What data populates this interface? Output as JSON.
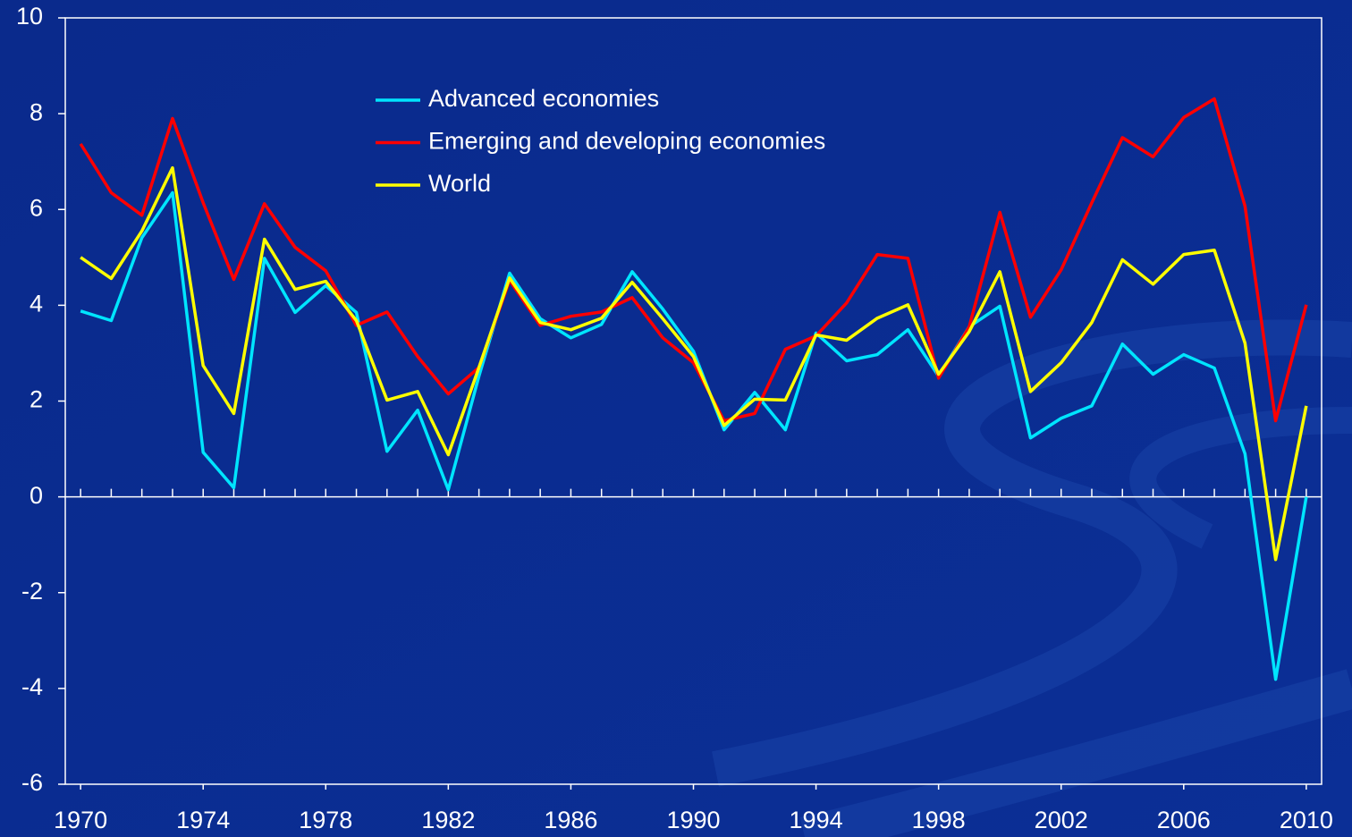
{
  "chart_data": {
    "type": "line",
    "x": [
      1970,
      1971,
      1972,
      1973,
      1974,
      1975,
      1976,
      1977,
      1978,
      1979,
      1980,
      1981,
      1982,
      1983,
      1984,
      1985,
      1986,
      1987,
      1988,
      1989,
      1990,
      1991,
      1992,
      1993,
      1994,
      1995,
      1996,
      1997,
      1998,
      1999,
      2000,
      2001,
      2002,
      2003,
      2004,
      2005,
      2006,
      2007,
      2008,
      2009,
      2010
    ],
    "series": [
      {
        "name": "Advanced economies",
        "color": "#00e5ff",
        "values": [
          3.88,
          3.68,
          5.41,
          6.35,
          0.93,
          0.19,
          4.98,
          3.85,
          4.41,
          3.85,
          0.95,
          1.81,
          0.15,
          2.52,
          4.67,
          3.72,
          3.32,
          3.6,
          4.7,
          3.92,
          3.04,
          1.4,
          2.18,
          1.4,
          3.42,
          2.84,
          2.97,
          3.49,
          2.52,
          3.55,
          3.98,
          1.23,
          1.64,
          1.9,
          3.19,
          2.56,
          2.97,
          2.69,
          0.9,
          -3.81,
          0.0
        ]
      },
      {
        "name": "Emerging and developing economies",
        "color": "#ff0000",
        "values": [
          7.37,
          6.35,
          5.88,
          7.9,
          6.14,
          4.54,
          6.12,
          5.21,
          4.72,
          3.58,
          3.86,
          2.93,
          2.15,
          2.7,
          4.52,
          3.58,
          3.77,
          3.86,
          4.16,
          3.32,
          2.8,
          1.59,
          1.74,
          3.08,
          3.36,
          4.05,
          5.06,
          4.98,
          2.48,
          3.55,
          5.94,
          3.75,
          4.74,
          6.14,
          7.5,
          7.1,
          7.92,
          8.31,
          6.07,
          1.59,
          4.01
        ]
      },
      {
        "name": "World",
        "color": "#ffff00",
        "values": [
          5.0,
          4.56,
          5.55,
          6.87,
          2.74,
          1.74,
          5.38,
          4.33,
          4.5,
          3.68,
          2.02,
          2.2,
          0.88,
          2.7,
          4.57,
          3.64,
          3.49,
          3.73,
          4.48,
          3.72,
          2.93,
          1.49,
          2.04,
          2.02,
          3.38,
          3.27,
          3.73,
          4.01,
          2.56,
          3.45,
          4.7,
          2.2,
          2.8,
          3.64,
          4.95,
          4.44,
          5.06,
          5.15,
          3.21,
          -1.31,
          1.9
        ]
      }
    ],
    "xlim": [
      1969.5,
      2010.5
    ],
    "xticks": [
      1970,
      1974,
      1978,
      1982,
      1986,
      1990,
      1994,
      1998,
      2002,
      2006,
      2010
    ],
    "ylim": [
      -6,
      10
    ],
    "yticks": [
      -6,
      -4,
      -2,
      0,
      2,
      4,
      6,
      8,
      10
    ]
  }
}
